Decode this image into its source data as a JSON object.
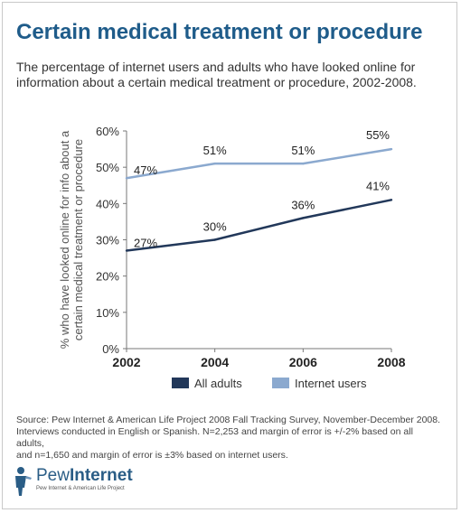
{
  "title": "Certain medical treatment or procedure",
  "subtitle": "The percentage of internet users and adults who have looked online for information about a certain medical treatment or procedure, 2002-2008.",
  "source": {
    "line1": "Source:  Pew Internet & American Life Project 2008 Fall Tracking Survey, November-December 2008.",
    "line2": "Interviews conducted in English or Spanish. N=2,253 and margin of error is +/-2% based on all adults,",
    "line3": "and n=1,650 and margin of error is ±3% based on internet users."
  },
  "logo": {
    "name_light": "Pew",
    "name_bold": "Internet",
    "tagline": "Pew Internet & American Life Project"
  },
  "colors": {
    "title": "#1f5c8a",
    "all_adults": "#22385a",
    "internet_users": "#8ba9cf"
  },
  "chart_data": {
    "type": "line",
    "x": [
      2002,
      2004,
      2006,
      2008
    ],
    "ylabel_line1": "% who have looked online for info about a",
    "ylabel_line2": "certain medical treatment or procedure",
    "xlabel": "",
    "ylim": [
      0,
      60
    ],
    "y_ticks": [
      "0%",
      "10%",
      "20%",
      "30%",
      "40%",
      "50%",
      "60%"
    ],
    "x_ticks": [
      "2002",
      "2004",
      "2006",
      "2008"
    ],
    "grid": false,
    "legend_position": "bottom",
    "series": [
      {
        "name": "All adults",
        "values": [
          27,
          30,
          36,
          41
        ],
        "labels": [
          "27%",
          "30%",
          "36%",
          "41%"
        ],
        "color": "#22385a"
      },
      {
        "name": "Internet users",
        "values": [
          47,
          51,
          51,
          55
        ],
        "labels": [
          "47%",
          "51%",
          "51%",
          "55%"
        ],
        "color": "#8ba9cf"
      }
    ]
  }
}
